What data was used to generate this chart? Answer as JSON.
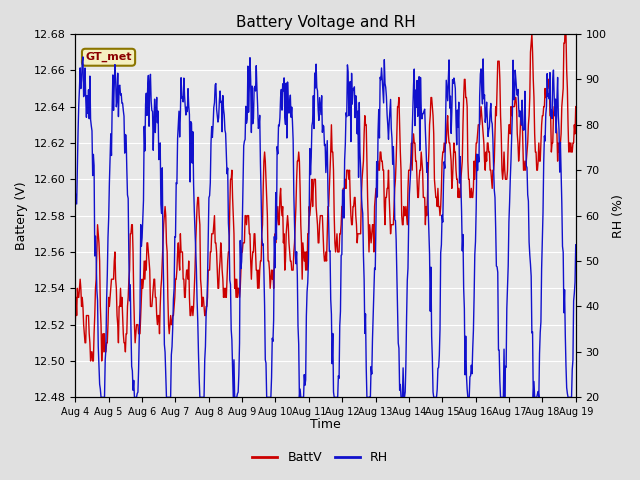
{
  "title": "Battery Voltage and RH",
  "xlabel": "Time",
  "ylabel_left": "Battery (V)",
  "ylabel_right": "RH (%)",
  "legend_label": "GT_met",
  "series_labels": [
    "BattV",
    "RH"
  ],
  "series_colors": [
    "#cc0000",
    "#1111cc"
  ],
  "batt_ylim": [
    12.48,
    12.68
  ],
  "rh_ylim": [
    20,
    100
  ],
  "batt_yticks": [
    12.48,
    12.5,
    12.52,
    12.54,
    12.56,
    12.58,
    12.6,
    12.62,
    12.64,
    12.66,
    12.68
  ],
  "rh_yticks": [
    20,
    30,
    40,
    50,
    60,
    70,
    80,
    90,
    100
  ],
  "xtick_labels": [
    "Aug 4",
    "Aug 5",
    "Aug 6",
    "Aug 7",
    "Aug 8",
    "Aug 9",
    "Aug 10",
    "Aug 11",
    "Aug 12",
    "Aug 13",
    "Aug 14",
    "Aug 15",
    "Aug 16",
    "Aug 17",
    "Aug 18",
    "Aug 19"
  ],
  "fig_bg_color": "#e0e0e0",
  "plot_bg_color": "#e8e8e8",
  "legend_box_facecolor": "#f5f0c0",
  "legend_box_edgecolor": "#8b7500",
  "legend_text_color": "#8b0000",
  "grid_color": "#ffffff",
  "n_days": 15,
  "seed": 99
}
